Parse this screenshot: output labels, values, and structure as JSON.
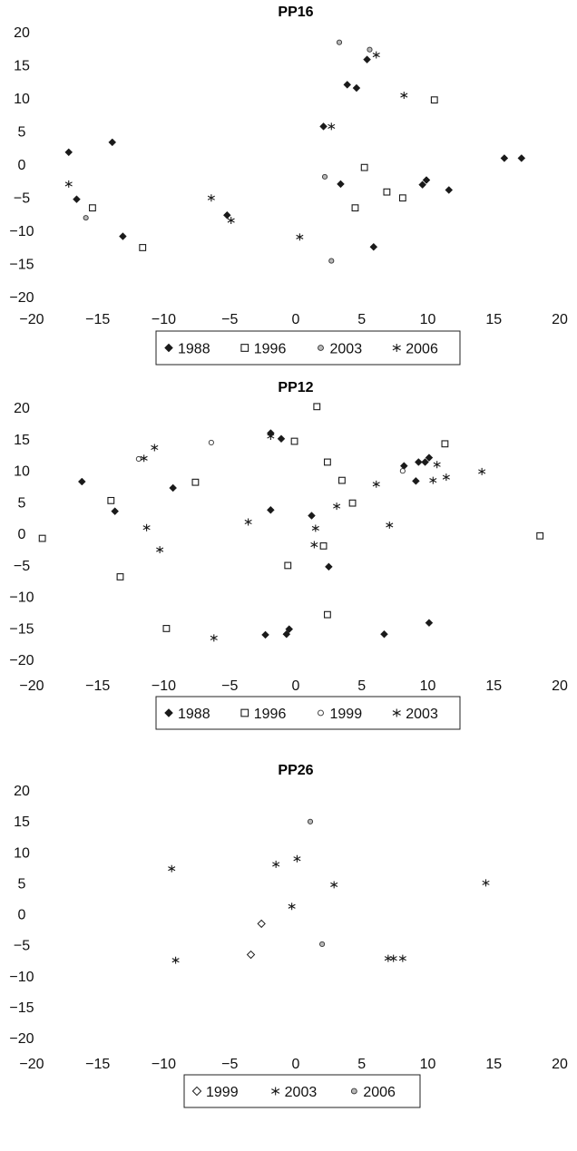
{
  "chart_data": [
    {
      "type": "scatter",
      "title": "PP16",
      "xlim": [
        -20,
        20
      ],
      "ylim": [
        -20,
        20
      ],
      "x_ticks": [
        "−20",
        "−15",
        "−10",
        "−5",
        "0",
        "5",
        "10",
        "15",
        "20"
      ],
      "y_ticks": [
        "20",
        "15",
        "10",
        "5",
        "0",
        "−5",
        "−10",
        "−15",
        "−20"
      ],
      "grid": false,
      "legend_position": "bottom",
      "series": [
        {
          "name": "1988",
          "marker": "diamond-filled",
          "points": [
            [
              -17.2,
              1.8
            ],
            [
              -16.6,
              -5.3
            ],
            [
              -13.9,
              3.3
            ],
            [
              -13.1,
              -10.9
            ],
            [
              -5.2,
              -7.7
            ],
            [
              2.1,
              5.7
            ],
            [
              3.4,
              -3
            ],
            [
              3.9,
              12
            ],
            [
              4.6,
              11.5
            ],
            [
              5.4,
              15.8
            ],
            [
              5.9,
              -12.5
            ],
            [
              9.6,
              -3.1
            ],
            [
              9.9,
              -2.4
            ],
            [
              11.6,
              -3.9
            ],
            [
              15.8,
              0.9
            ],
            [
              17.1,
              0.9
            ]
          ]
        },
        {
          "name": "1996",
          "marker": "square-open",
          "points": [
            [
              -15.4,
              -6.6
            ],
            [
              -11.6,
              -12.6
            ],
            [
              5.2,
              -0.5
            ],
            [
              4.5,
              -6.6
            ],
            [
              6.9,
              -4.2
            ],
            [
              8.1,
              -5.1
            ],
            [
              10.5,
              9.7
            ]
          ]
        },
        {
          "name": "2003",
          "marker": "circle-gray",
          "points": [
            [
              -15.9,
              -8.1
            ],
            [
              2.2,
              -1.9
            ],
            [
              2.7,
              -14.6
            ],
            [
              3.3,
              18.4
            ],
            [
              5.6,
              17.3
            ]
          ]
        },
        {
          "name": "2006",
          "marker": "asterisk",
          "points": [
            [
              -17.2,
              -3
            ],
            [
              -6.4,
              -5.1
            ],
            [
              -4.9,
              -8.5
            ],
            [
              0.3,
              -11
            ],
            [
              2.7,
              5.7
            ],
            [
              6.1,
              16.5
            ],
            [
              8.2,
              10.4
            ]
          ]
        }
      ]
    },
    {
      "type": "scatter",
      "title": "PP12",
      "xlim": [
        -20,
        20
      ],
      "ylim": [
        -20,
        20
      ],
      "x_ticks": [
        "−20",
        "−15",
        "−10",
        "−5",
        "0",
        "5",
        "10",
        "15",
        "20"
      ],
      "y_ticks": [
        "20",
        "15",
        "10",
        "5",
        "0",
        "−5",
        "−10",
        "−15",
        "−20"
      ],
      "grid": false,
      "legend_position": "bottom",
      "series": [
        {
          "name": "1988",
          "marker": "diamond-filled",
          "points": [
            [
              -16.2,
              8.2
            ],
            [
              -13.7,
              3.5
            ],
            [
              -9.3,
              7.2
            ],
            [
              -1.9,
              15.9
            ],
            [
              -1.1,
              15
            ],
            [
              -1.9,
              3.7
            ],
            [
              -2.3,
              -16.1
            ],
            [
              -0.7,
              -16
            ],
            [
              -0.5,
              -15.2
            ],
            [
              1.2,
              2.8
            ],
            [
              2.5,
              -5.3
            ],
            [
              8.2,
              10.7
            ],
            [
              9.1,
              8.3
            ],
            [
              9.3,
              11.3
            ],
            [
              9.8,
              11.3
            ],
            [
              10.1,
              12
            ],
            [
              6.7,
              -16
            ],
            [
              10.1,
              -14.2
            ]
          ]
        },
        {
          "name": "1996",
          "marker": "square-open",
          "points": [
            [
              -19.2,
              -0.8
            ],
            [
              -14,
              5.2
            ],
            [
              -13.3,
              -6.9
            ],
            [
              -7.6,
              8.1
            ],
            [
              -9.8,
              -15.1
            ],
            [
              -0.6,
              -5.1
            ],
            [
              -0.1,
              14.6
            ],
            [
              1.6,
              20.1
            ],
            [
              2.1,
              -2
            ],
            [
              2.4,
              11.3
            ],
            [
              2.4,
              -12.9
            ],
            [
              3.5,
              8.4
            ],
            [
              4.3,
              4.8
            ],
            [
              11.3,
              14.2
            ],
            [
              18.5,
              -0.4
            ]
          ]
        },
        {
          "name": "1999",
          "marker": "circle-open",
          "points": [
            [
              -11.9,
              11.8
            ],
            [
              -6.4,
              14.4
            ],
            [
              8.1,
              9.9
            ]
          ]
        },
        {
          "name": "2003",
          "marker": "asterisk",
          "points": [
            [
              -11.5,
              11.9
            ],
            [
              -11.3,
              0.9
            ],
            [
              -10.7,
              13.6
            ],
            [
              -10.3,
              -2.6
            ],
            [
              -6.2,
              -16.6
            ],
            [
              -3.6,
              1.8
            ],
            [
              -1.9,
              15.4
            ],
            [
              1.5,
              0.8
            ],
            [
              1.4,
              -1.8
            ],
            [
              3.1,
              4.3
            ],
            [
              6.1,
              7.8
            ],
            [
              7.1,
              1.3
            ],
            [
              10.4,
              8.4
            ],
            [
              10.7,
              10.9
            ],
            [
              11.4,
              8.9
            ],
            [
              14.1,
              9.8
            ]
          ]
        }
      ]
    },
    {
      "type": "scatter",
      "title": "PP26",
      "xlim": [
        -20,
        20
      ],
      "ylim": [
        -20,
        20
      ],
      "x_ticks": [
        "−20",
        "−15",
        "−10",
        "−5",
        "0",
        "5",
        "10",
        "15",
        "20"
      ],
      "y_ticks": [
        "20",
        "15",
        "10",
        "5",
        "0",
        "−5",
        "−10",
        "−15",
        "−20"
      ],
      "grid": false,
      "legend_position": "bottom",
      "series": [
        {
          "name": "1999",
          "marker": "diamond-open",
          "points": [
            [
              -2.6,
              -1.6
            ],
            [
              -3.4,
              -6.6
            ]
          ]
        },
        {
          "name": "2003",
          "marker": "asterisk",
          "points": [
            [
              -9.4,
              7.3
            ],
            [
              -9.1,
              -7.5
            ],
            [
              -1.5,
              8
            ],
            [
              0.1,
              8.9
            ],
            [
              -0.3,
              1.2
            ],
            [
              2.9,
              4.7
            ],
            [
              7,
              -7.2
            ],
            [
              7.4,
              -7.2
            ],
            [
              8.1,
              -7.2
            ],
            [
              14.4,
              5
            ]
          ]
        },
        {
          "name": "2006",
          "marker": "circle-gray",
          "points": [
            [
              1.1,
              14.9
            ],
            [
              2,
              -4.9
            ]
          ]
        }
      ]
    }
  ]
}
